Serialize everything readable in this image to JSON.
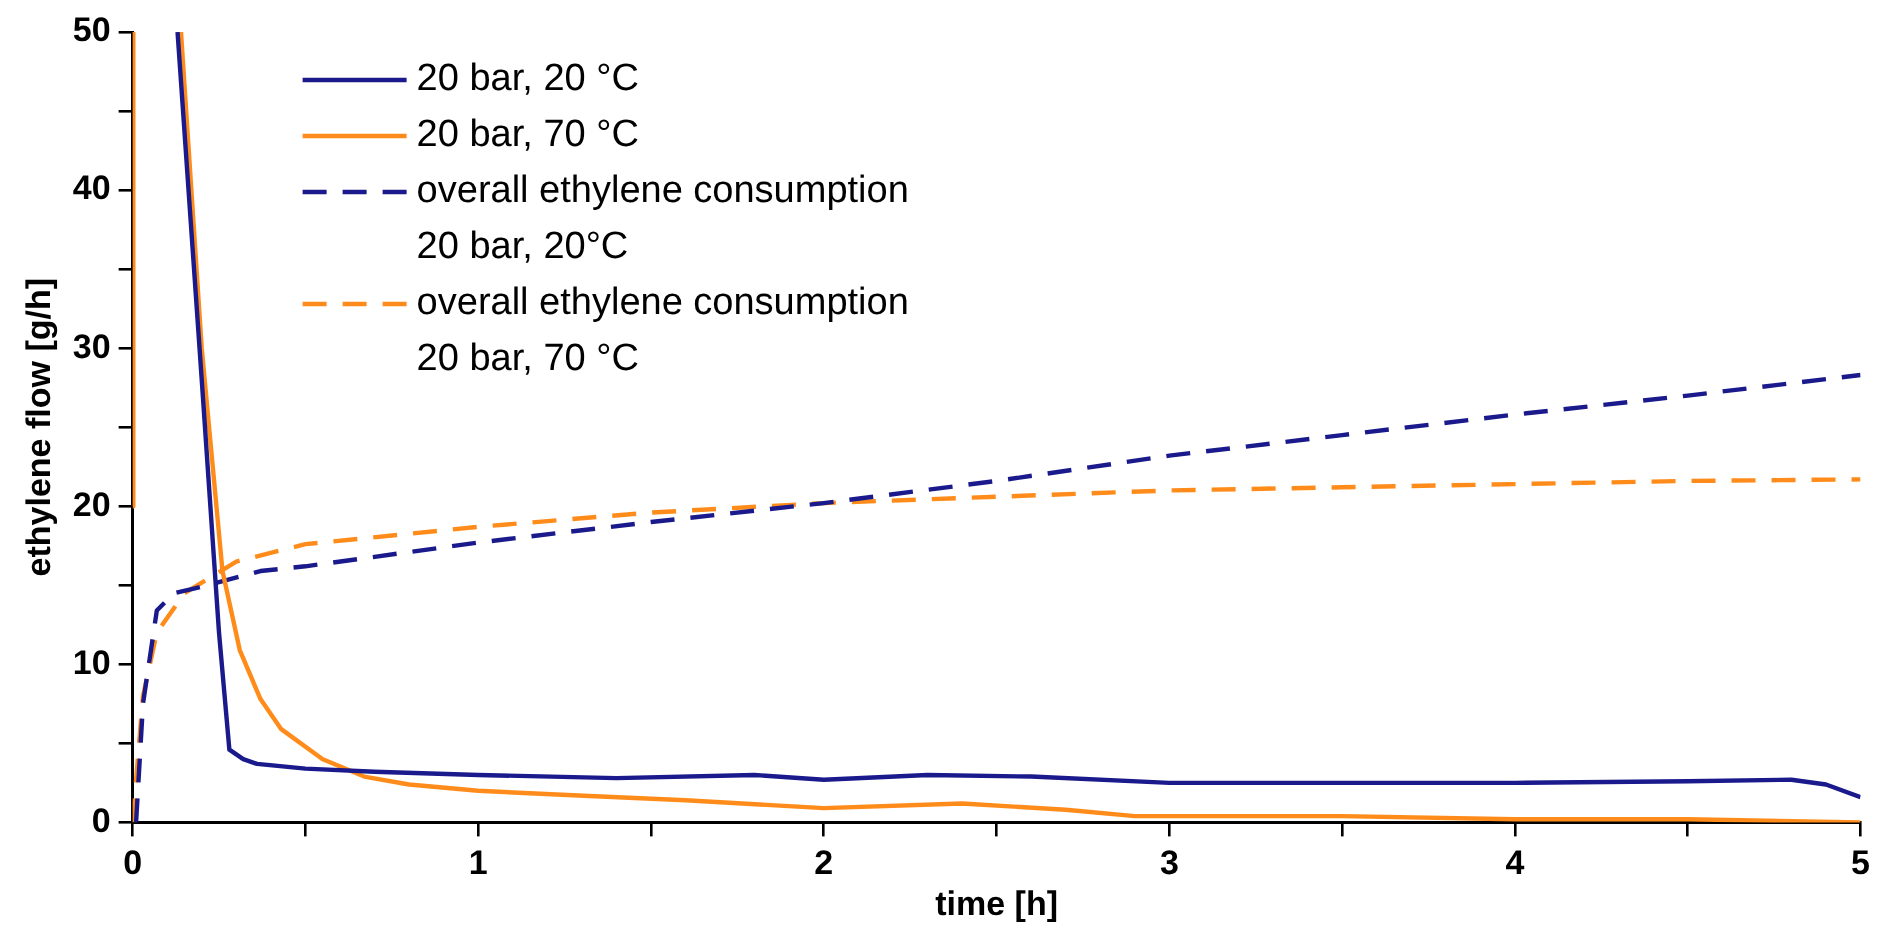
{
  "chart_data": {
    "type": "line",
    "xlabel": "time [h]",
    "ylabel": "ethylene flow [g/h]",
    "xlim": [
      0,
      5
    ],
    "xticks": [
      0,
      {
        "value": 0.5,
        "label": null
      },
      1,
      {
        "value": 1.5,
        "label": null
      },
      2,
      {
        "value": 2.5,
        "label": null
      },
      3,
      {
        "value": 3.5,
        "label": null
      },
      4,
      {
        "value": 4.5,
        "label": null
      },
      5
    ],
    "ylim": [
      0,
      50
    ],
    "yticks": [
      0,
      {
        "value": 5,
        "label": null
      },
      10,
      {
        "value": 15,
        "label": null
      },
      20,
      {
        "value": 25,
        "label": null
      },
      30,
      {
        "value": 35,
        "label": null
      },
      40,
      {
        "value": 45,
        "label": null
      },
      50
    ],
    "grid": false,
    "legend": "top left",
    "marker": "none",
    "series": [
      {
        "name": "20 bar, 20 °C",
        "color": "#1a1a8c",
        "line_style": "solid",
        "x": [
          0.13,
          0.2,
          0.25,
          0.28,
          0.32,
          0.36,
          0.5,
          0.7,
          1,
          1.4,
          1.8,
          2,
          2.3,
          2.6,
          3,
          3.5,
          4,
          4.5,
          4.8,
          4.9,
          5
        ],
        "values": [
          50,
          28,
          12,
          4.6,
          4,
          3.7,
          3.4,
          3.2,
          3,
          2.8,
          3,
          2.7,
          3,
          2.9,
          2.5,
          2.5,
          2.5,
          2.6,
          2.7,
          2.4,
          1.6
        ]
      },
      {
        "name": "20 bar, 70 °C",
        "color": "#ff8c1a",
        "line_style": "solid",
        "x": [
          0,
          0.002,
          0.05,
          0.14,
          0.2,
          0.26,
          0.31,
          0.37,
          0.43,
          0.55,
          0.67,
          0.8,
          1,
          1.29,
          1.6,
          2,
          2.4,
          2.7,
          2.9,
          3.5,
          4,
          4.5,
          5
        ],
        "values": [
          20,
          50,
          null,
          50,
          30,
          15.9,
          10.9,
          7.8,
          5.9,
          4,
          2.9,
          2.4,
          2,
          1.7,
          1.4,
          0.9,
          1.2,
          0.8,
          0.4,
          0.4,
          0.2,
          0.2,
          0
        ]
      },
      {
        "name": "overall ethylene consumption 20 bar, 20°C",
        "color": "#1a1a8c",
        "line_style": "dashed",
        "x": [
          0.01,
          0.03,
          0.07,
          0.12,
          0.18,
          0.37,
          0.5,
          1,
          1.5,
          2,
          2.5,
          3,
          3.5,
          4,
          4.5,
          5
        ],
        "values": [
          0,
          7.5,
          13.4,
          14.5,
          14.8,
          15.9,
          16.2,
          17.7,
          19,
          20.2,
          21.6,
          23.2,
          24.5,
          25.8,
          27,
          28.3
        ]
      },
      {
        "name": "overall ethylene consumption 20 bar, 70 °C",
        "color": "#ff8c1a",
        "line_style": "dashed",
        "x": [
          0,
          0.03,
          0.07,
          0.15,
          0.3,
          0.5,
          1,
          1.5,
          2,
          2.5,
          3,
          3.5,
          4,
          4.5,
          5
        ],
        "values": [
          0,
          8,
          12,
          14.5,
          16.5,
          17.6,
          18.7,
          19.6,
          20.2,
          20.6,
          21,
          21.2,
          21.4,
          21.6,
          21.7
        ]
      }
    ]
  }
}
